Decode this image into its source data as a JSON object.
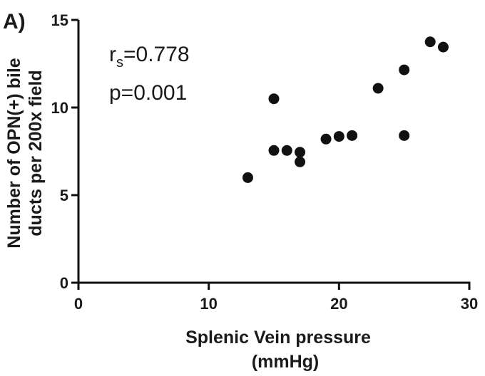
{
  "chart_data": {
    "type": "scatter",
    "panel_label": "A)",
    "xlabel_line1": "Splenic Vein pressure",
    "xlabel_line2": "(mmHg)",
    "ylabel_line1": "Number of OPN(+) bile",
    "ylabel_line2": "ducts per 200x field",
    "xlim": [
      0,
      30
    ],
    "ylim": [
      0,
      15
    ],
    "x_ticks": [
      0,
      10,
      20,
      30
    ],
    "y_ticks": [
      0,
      5,
      10,
      15
    ],
    "annotation": {
      "rs_label": "r",
      "rs_sub": "s",
      "rs_value": "=0.778",
      "p_text": "p=0.001"
    },
    "points": [
      {
        "x": 13,
        "y": 6.0
      },
      {
        "x": 15,
        "y": 10.5
      },
      {
        "x": 15,
        "y": 7.55
      },
      {
        "x": 16,
        "y": 7.55
      },
      {
        "x": 17,
        "y": 7.45
      },
      {
        "x": 17,
        "y": 6.9
      },
      {
        "x": 19,
        "y": 8.2
      },
      {
        "x": 20,
        "y": 8.35
      },
      {
        "x": 21,
        "y": 8.4
      },
      {
        "x": 23,
        "y": 11.1
      },
      {
        "x": 25,
        "y": 12.15
      },
      {
        "x": 25,
        "y": 8.4
      },
      {
        "x": 27,
        "y": 13.75
      },
      {
        "x": 28,
        "y": 13.45
      }
    ],
    "marker_color": "#111111"
  }
}
